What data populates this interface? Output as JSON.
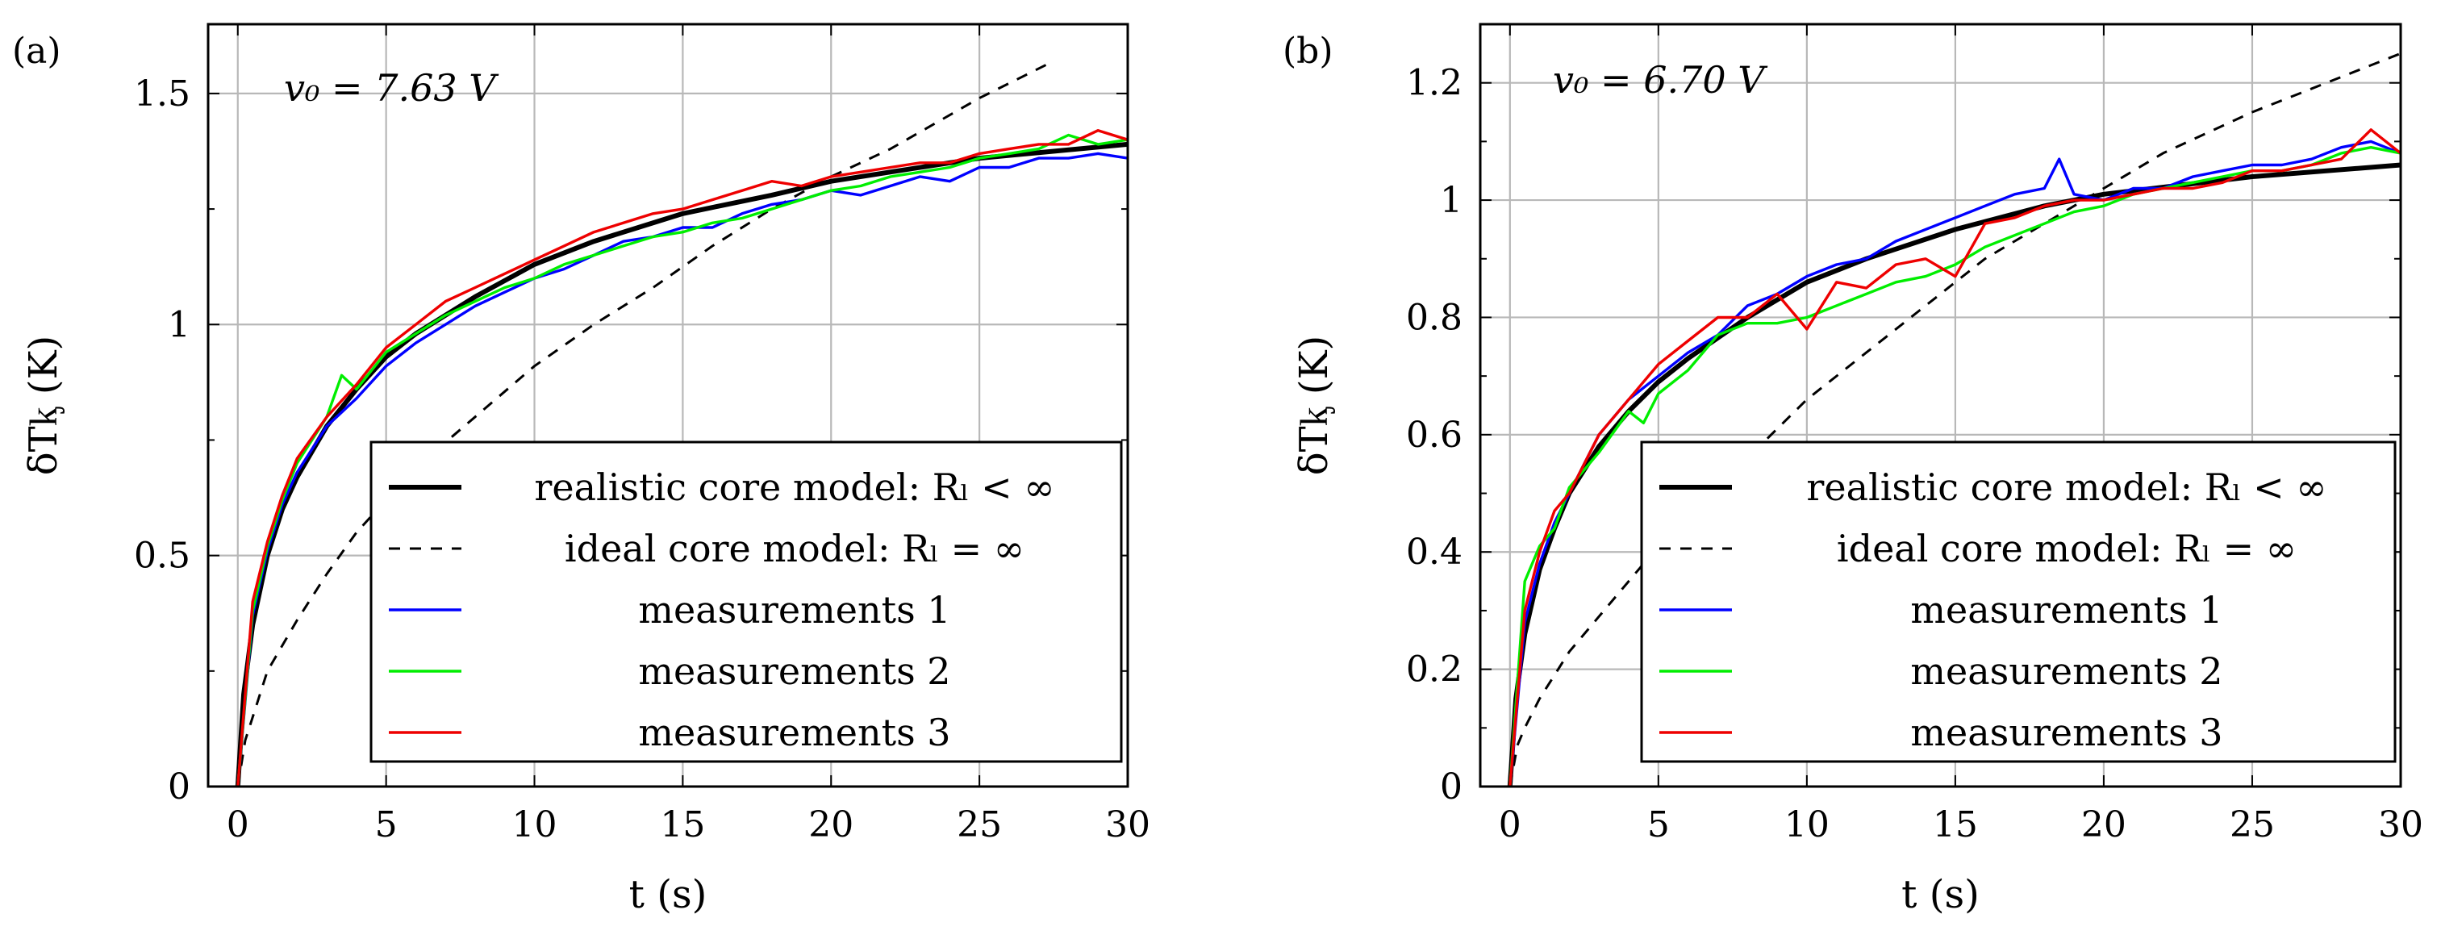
{
  "chart_data": [
    {
      "panel_label": "(a)",
      "type": "line",
      "title": "",
      "annotation": "v₀ = 7.63 V",
      "xlabel": "t (s)",
      "ylabel": "δTᶄ (K)",
      "xlim": [
        -1,
        30
      ],
      "ylim": [
        0,
        1.65
      ],
      "xticks": [
        0,
        5,
        10,
        15,
        20,
        25,
        30
      ],
      "xtick_labels": [
        "0",
        "5",
        "10",
        "15",
        "20",
        "25",
        "30"
      ],
      "yticks": [
        0,
        0.5,
        1,
        1.5
      ],
      "ytick_labels": [
        "0",
        "0.5",
        "1",
        "1.5"
      ],
      "minor_yticks": [
        0.25,
        0.75,
        1.25
      ],
      "grid": true,
      "legend_position": "bottom-right",
      "legend": [
        {
          "label": "realistic core model: Rₗ < ∞",
          "color": "#000000",
          "style": "solid-thick"
        },
        {
          "label": "ideal core model: Rₗ = ∞",
          "color": "#000000",
          "style": "dashed"
        },
        {
          "label": "measurements 1",
          "color": "#0000ff",
          "style": "solid"
        },
        {
          "label": "measurements 2",
          "color": "#00ee00",
          "style": "solid"
        },
        {
          "label": "measurements 3",
          "color": "#ee0000",
          "style": "solid"
        }
      ],
      "series": [
        {
          "name": "realistic core model",
          "color": "#000000",
          "x": [
            0,
            0.2,
            0.5,
            1,
            1.5,
            2,
            3,
            4,
            5,
            6,
            8,
            10,
            12,
            15,
            18,
            20,
            25,
            30
          ],
          "y": [
            0,
            0.2,
            0.35,
            0.5,
            0.6,
            0.67,
            0.78,
            0.86,
            0.93,
            0.98,
            1.06,
            1.13,
            1.18,
            1.24,
            1.28,
            1.31,
            1.36,
            1.39
          ]
        },
        {
          "name": "ideal core model",
          "color": "#000000",
          "x": [
            0,
            0.25,
            0.5,
            1,
            2,
            3,
            4,
            5,
            6,
            8,
            10,
            12,
            14,
            16,
            18,
            20,
            22,
            25,
            27.5
          ],
          "y": [
            0,
            0.1,
            0.15,
            0.25,
            0.36,
            0.46,
            0.55,
            0.62,
            0.69,
            0.8,
            0.91,
            1.0,
            1.08,
            1.17,
            1.25,
            1.32,
            1.38,
            1.49,
            1.57
          ]
        },
        {
          "name": "measurements 1",
          "color": "#0000ff",
          "x": [
            0,
            0.5,
            1,
            1.5,
            2,
            3,
            4,
            5,
            6,
            7,
            8,
            9,
            10,
            11,
            12,
            13,
            14,
            15,
            16,
            17,
            18,
            19,
            20,
            21,
            22,
            23,
            24,
            25,
            26,
            27,
            28,
            29,
            30
          ],
          "y": [
            0,
            0.37,
            0.51,
            0.61,
            0.68,
            0.78,
            0.84,
            0.91,
            0.96,
            1.0,
            1.04,
            1.07,
            1.1,
            1.12,
            1.15,
            1.18,
            1.19,
            1.21,
            1.21,
            1.24,
            1.26,
            1.27,
            1.29,
            1.28,
            1.3,
            1.32,
            1.31,
            1.34,
            1.34,
            1.36,
            1.36,
            1.37,
            1.36
          ]
        },
        {
          "name": "measurements 2",
          "color": "#00ee00",
          "x": [
            0,
            0.5,
            1,
            1.5,
            2,
            3,
            3.5,
            4,
            5,
            6,
            7,
            8,
            9,
            10,
            11,
            12,
            13,
            14,
            15,
            16,
            17,
            18,
            19,
            20,
            21,
            22,
            23,
            24,
            25,
            26,
            27,
            28,
            29,
            30
          ],
          "y": [
            0,
            0.38,
            0.52,
            0.62,
            0.7,
            0.8,
            0.89,
            0.86,
            0.94,
            0.98,
            1.02,
            1.05,
            1.08,
            1.1,
            1.13,
            1.15,
            1.17,
            1.19,
            1.2,
            1.22,
            1.23,
            1.25,
            1.27,
            1.29,
            1.3,
            1.32,
            1.33,
            1.34,
            1.36,
            1.37,
            1.38,
            1.41,
            1.39,
            1.4
          ]
        },
        {
          "name": "measurements 3",
          "color": "#ee0000",
          "x": [
            0,
            0.5,
            1,
            1.5,
            2,
            3,
            4,
            5,
            6,
            7,
            8,
            9,
            10,
            11,
            12,
            13,
            14,
            15,
            16,
            17,
            18,
            19,
            20,
            21,
            22,
            23,
            24,
            25,
            26,
            27,
            28,
            29,
            30
          ],
          "y": [
            0,
            0.4,
            0.53,
            0.63,
            0.71,
            0.8,
            0.87,
            0.95,
            1.0,
            1.05,
            1.08,
            1.11,
            1.14,
            1.17,
            1.2,
            1.22,
            1.24,
            1.25,
            1.27,
            1.29,
            1.31,
            1.3,
            1.32,
            1.33,
            1.34,
            1.35,
            1.35,
            1.37,
            1.38,
            1.39,
            1.39,
            1.42,
            1.4
          ]
        }
      ]
    },
    {
      "panel_label": "(b)",
      "type": "line",
      "title": "",
      "annotation": "v₀ = 6.70 V",
      "xlabel": "t (s)",
      "ylabel": "δTᶄ (K)",
      "xlim": [
        -1,
        30
      ],
      "ylim": [
        0,
        1.3
      ],
      "xticks": [
        0,
        5,
        10,
        15,
        20,
        25,
        30
      ],
      "xtick_labels": [
        "0",
        "5",
        "10",
        "15",
        "20",
        "25",
        "30"
      ],
      "yticks": [
        0,
        0.2,
        0.4,
        0.6,
        0.8,
        1,
        1.2
      ],
      "ytick_labels": [
        "0",
        "0.2",
        "0.4",
        "0.6",
        "0.8",
        "1",
        "1.2"
      ],
      "minor_yticks": [
        0.1,
        0.3,
        0.5,
        0.7,
        0.9,
        1.1
      ],
      "grid": true,
      "legend_position": "bottom-right",
      "legend": [
        {
          "label": "realistic core model: Rₗ < ∞",
          "color": "#000000",
          "style": "solid-thick"
        },
        {
          "label": "ideal core model: Rₗ = ∞",
          "color": "#000000",
          "style": "dashed"
        },
        {
          "label": "measurements 1",
          "color": "#0000ff",
          "style": "solid"
        },
        {
          "label": "measurements 2",
          "color": "#00ee00",
          "style": "solid"
        },
        {
          "label": "measurements 3",
          "color": "#ee0000",
          "style": "solid"
        }
      ],
      "series": [
        {
          "name": "realistic core model",
          "color": "#000000",
          "x": [
            0,
            0.2,
            0.5,
            1,
            1.5,
            2,
            3,
            4,
            5,
            6,
            8,
            10,
            12,
            15,
            18,
            20,
            25,
            30
          ],
          "y": [
            0,
            0.15,
            0.26,
            0.37,
            0.44,
            0.5,
            0.58,
            0.64,
            0.69,
            0.73,
            0.8,
            0.86,
            0.9,
            0.95,
            0.99,
            1.01,
            1.04,
            1.06
          ]
        },
        {
          "name": "ideal core model",
          "color": "#000000",
          "x": [
            0,
            0.25,
            0.5,
            1,
            2,
            3,
            4,
            5,
            6,
            8,
            10,
            12,
            14,
            16,
            18,
            20,
            22,
            25,
            28,
            30
          ],
          "y": [
            0,
            0.07,
            0.1,
            0.15,
            0.23,
            0.29,
            0.35,
            0.41,
            0.46,
            0.56,
            0.66,
            0.74,
            0.82,
            0.9,
            0.96,
            1.02,
            1.08,
            1.15,
            1.21,
            1.25
          ]
        },
        {
          "name": "measurements 1",
          "color": "#0000ff",
          "x": [
            0,
            0.5,
            1,
            1.5,
            2,
            3,
            4,
            5,
            6,
            7,
            8,
            9,
            10,
            11,
            12,
            13,
            14,
            15,
            16,
            17,
            18,
            18.5,
            19,
            20,
            21,
            22,
            23,
            24,
            25,
            26,
            27,
            28,
            29,
            30
          ],
          "y": [
            0,
            0.28,
            0.38,
            0.45,
            0.5,
            0.6,
            0.66,
            0.7,
            0.74,
            0.77,
            0.82,
            0.84,
            0.87,
            0.89,
            0.9,
            0.93,
            0.95,
            0.97,
            0.99,
            1.01,
            1.02,
            1.07,
            1.01,
            1.0,
            1.02,
            1.02,
            1.04,
            1.05,
            1.06,
            1.06,
            1.07,
            1.09,
            1.1,
            1.08
          ]
        },
        {
          "name": "measurements 2",
          "color": "#00ee00",
          "x": [
            0,
            0.5,
            1,
            1.5,
            2,
            3,
            4,
            4.5,
            5,
            6,
            7,
            8,
            9,
            10,
            11,
            12,
            13,
            14,
            15,
            16,
            17,
            18,
            19,
            20,
            21,
            22,
            23,
            24,
            25,
            26,
            27,
            28,
            29,
            30
          ],
          "y": [
            0,
            0.35,
            0.41,
            0.44,
            0.51,
            0.57,
            0.64,
            0.62,
            0.67,
            0.71,
            0.77,
            0.79,
            0.79,
            0.8,
            0.82,
            0.84,
            0.86,
            0.87,
            0.89,
            0.92,
            0.94,
            0.96,
            0.98,
            0.99,
            1.01,
            1.02,
            1.03,
            1.04,
            1.05,
            1.05,
            1.06,
            1.08,
            1.09,
            1.08
          ]
        },
        {
          "name": "measurements 3",
          "color": "#ee0000",
          "x": [
            0,
            0.5,
            1,
            1.5,
            2,
            3,
            4,
            5,
            6,
            7,
            8,
            9,
            10,
            11,
            12,
            13,
            14,
            15,
            16,
            17,
            18,
            19,
            20,
            21,
            22,
            23,
            24,
            25,
            26,
            27,
            28,
            29,
            30
          ],
          "y": [
            0,
            0.3,
            0.4,
            0.47,
            0.5,
            0.6,
            0.66,
            0.72,
            0.76,
            0.8,
            0.8,
            0.84,
            0.78,
            0.86,
            0.85,
            0.89,
            0.9,
            0.87,
            0.96,
            0.97,
            0.99,
            1.0,
            1.0,
            1.01,
            1.02,
            1.02,
            1.03,
            1.05,
            1.05,
            1.06,
            1.07,
            1.12,
            1.08
          ]
        }
      ]
    }
  ]
}
